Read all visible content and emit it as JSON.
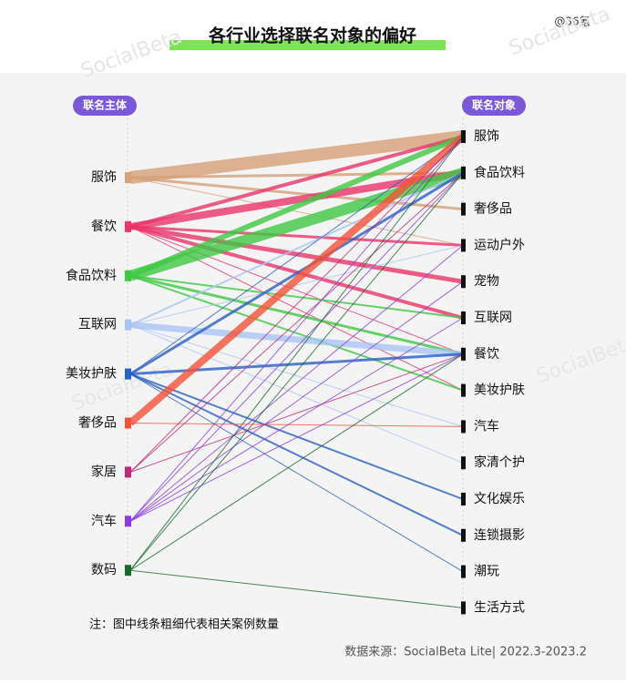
{
  "title": "各行业选择联名对象的偏好",
  "watermark_top": "@36氪",
  "watermark": "SocialBeta",
  "left_header": "联名主体",
  "right_header": "联名对象",
  "sources": [
    {
      "label": "服饰",
      "color": "#d6a078"
    },
    {
      "label": "餐饮",
      "color": "#e8356a"
    },
    {
      "label": "食品饮料",
      "color": "#3ec843"
    },
    {
      "label": "互联网",
      "color": "#a9c4f5"
    },
    {
      "label": "美妆护肤",
      "color": "#2a5fc4"
    },
    {
      "label": "奢侈品",
      "color": "#f2533a"
    },
    {
      "label": "家居",
      "color": "#c0287a"
    },
    {
      "label": "汽车",
      "color": "#8a3ee0"
    },
    {
      "label": "数码",
      "color": "#1a6b2a"
    }
  ],
  "targets": [
    "服饰",
    "食品饮料",
    "奢侈品",
    "运动户外",
    "宠物",
    "互联网",
    "餐饮",
    "美妆护肤",
    "汽车",
    "家清个护",
    "文化娱乐",
    "连锁摄影",
    "潮玩",
    "生活方式"
  ],
  "links": [
    {
      "source": 0,
      "target": 0,
      "weight": 14
    },
    {
      "source": 0,
      "target": 1,
      "weight": 3
    },
    {
      "source": 0,
      "target": 2,
      "weight": 3
    },
    {
      "source": 0,
      "target": 3,
      "weight": 1
    },
    {
      "source": 1,
      "target": 0,
      "weight": 4
    },
    {
      "source": 1,
      "target": 1,
      "weight": 8
    },
    {
      "source": 1,
      "target": 3,
      "weight": 3
    },
    {
      "source": 1,
      "target": 4,
      "weight": 5
    },
    {
      "source": 1,
      "target": 5,
      "weight": 4
    },
    {
      "source": 1,
      "target": 6,
      "weight": 1
    },
    {
      "source": 1,
      "target": 7,
      "weight": 1
    },
    {
      "source": 2,
      "target": 0,
      "weight": 6
    },
    {
      "source": 2,
      "target": 1,
      "weight": 12
    },
    {
      "source": 2,
      "target": 5,
      "weight": 2
    },
    {
      "source": 2,
      "target": 6,
      "weight": 3
    },
    {
      "source": 2,
      "target": 7,
      "weight": 2
    },
    {
      "source": 3,
      "target": 1,
      "weight": 2
    },
    {
      "source": 3,
      "target": 3,
      "weight": 1
    },
    {
      "source": 3,
      "target": 6,
      "weight": 7
    },
    {
      "source": 3,
      "target": 8,
      "weight": 1
    },
    {
      "source": 3,
      "target": 9,
      "weight": 1
    },
    {
      "source": 4,
      "target": 0,
      "weight": 1
    },
    {
      "source": 4,
      "target": 1,
      "weight": 3
    },
    {
      "source": 4,
      "target": 6,
      "weight": 3
    },
    {
      "source": 4,
      "target": 10,
      "weight": 2
    },
    {
      "source": 4,
      "target": 11,
      "weight": 2
    },
    {
      "source": 4,
      "target": 12,
      "weight": 1
    },
    {
      "source": 5,
      "target": 0,
      "weight": 8
    },
    {
      "source": 5,
      "target": 8,
      "weight": 1
    },
    {
      "source": 6,
      "target": 0,
      "weight": 1
    },
    {
      "source": 6,
      "target": 1,
      "weight": 1
    },
    {
      "source": 6,
      "target": 6,
      "weight": 1
    },
    {
      "source": 7,
      "target": 0,
      "weight": 1
    },
    {
      "source": 7,
      "target": 1,
      "weight": 1
    },
    {
      "source": 7,
      "target": 3,
      "weight": 1
    },
    {
      "source": 7,
      "target": 4,
      "weight": 1
    },
    {
      "source": 7,
      "target": 5,
      "weight": 1
    },
    {
      "source": 7,
      "target": 6,
      "weight": 1
    },
    {
      "source": 8,
      "target": 0,
      "weight": 1
    },
    {
      "source": 8,
      "target": 1,
      "weight": 1
    },
    {
      "source": 8,
      "target": 6,
      "weight": 1
    },
    {
      "source": 8,
      "target": 13,
      "weight": 1
    }
  ],
  "note": "注：图中线条粗细代表相关案例数量",
  "source_text": "数据来源：SocialBeta Lite| 2022.3-2023.2"
}
